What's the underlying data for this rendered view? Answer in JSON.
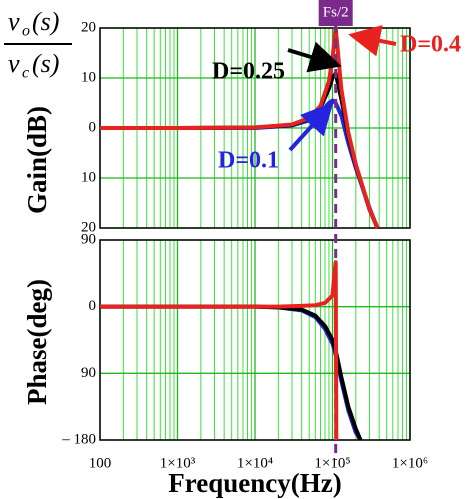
{
  "chart_data": [
    {
      "type": "line",
      "ylabel": "Gain(dB)",
      "xscale": "log",
      "grid": true,
      "minor_grid": true,
      "xlim": [
        100,
        1000000
      ],
      "ylim": [
        -20,
        20
      ],
      "yticks": [
        20,
        10,
        0,
        {
          "value": -10,
          "label": "10"
        },
        {
          "value": -20,
          "label": "20"
        }
      ],
      "formula": {
        "numerator": {
          "var": "v",
          "sub": "o",
          "arg": "(s)"
        },
        "denominator": {
          "var": "v",
          "sub": "c",
          "arg": "(s)"
        }
      },
      "marker": {
        "label": "Fs/2",
        "x": 110000,
        "color": "#7b2a8c"
      },
      "x": [
        100,
        1000,
        10000,
        30000,
        50000,
        70000,
        90000,
        100000,
        110000,
        130000,
        160000,
        200000,
        300000,
        380000
      ],
      "series": [
        {
          "name": "D=0.1",
          "color": "#2323e0",
          "values": [
            0,
            0,
            0,
            0.5,
            1.5,
            3,
            5,
            5.5,
            5,
            2.5,
            -3,
            -8,
            -16,
            -20
          ]
        },
        {
          "name": "D=0.25",
          "color": "#000000",
          "values": [
            0,
            0,
            0.1,
            0.6,
            1.9,
            4.1,
            7.9,
            10.1,
            10.9,
            5.8,
            -1.5,
            -7.5,
            -16.3,
            -20
          ]
        },
        {
          "name": "D=0.4",
          "color": "#e8231f",
          "values": [
            0,
            0,
            0.1,
            0.7,
            2,
            4.4,
            9.4,
            14,
            20,
            7.8,
            -0.9,
            -7.3,
            -16.2,
            -20
          ]
        }
      ]
    },
    {
      "type": "line",
      "ylabel": "Phase(deg)",
      "xlabel": "Frequency(Hz)",
      "xscale": "log",
      "grid": true,
      "minor_grid": true,
      "xlim": [
        100,
        1000000
      ],
      "ylim": [
        -180,
        90
      ],
      "xticks": [
        100,
        {
          "value": 1000,
          "label": "1×10³"
        },
        {
          "value": 10000,
          "label": "1×10⁴"
        },
        {
          "value": 100000,
          "label": "1×10⁵"
        },
        {
          "value": 1000000,
          "label": "1×10⁶"
        }
      ],
      "yticks": [
        90,
        0,
        {
          "value": -90,
          "label": "90"
        },
        {
          "value": -180,
          "label": "– 180"
        }
      ],
      "x": [
        100,
        1000,
        10000,
        20000,
        40000,
        60000,
        80000,
        100000,
        105000,
        110000,
        112000,
        130000,
        160000,
        200000,
        230000
      ],
      "series": [
        {
          "name": "D=0.1",
          "color": "#2323e0",
          "values": [
            0,
            0,
            0,
            -1,
            -5,
            -14,
            -30,
            -50,
            -57,
            -65,
            -68,
            -100,
            -140,
            -170,
            -180
          ]
        },
        {
          "name": "D=0.25",
          "color": "#000000",
          "values": [
            0,
            0,
            0,
            -1,
            -4,
            -12,
            -26,
            -45,
            -52,
            -60,
            -63,
            -95,
            -135,
            -165,
            -180
          ]
        },
        {
          "name": "D=0.4",
          "color": "#e8231f",
          "values": [
            0,
            0,
            0,
            0,
            1,
            2,
            5,
            15,
            40,
            60,
            -180,
            null,
            null,
            null,
            null
          ]
        }
      ]
    }
  ]
}
